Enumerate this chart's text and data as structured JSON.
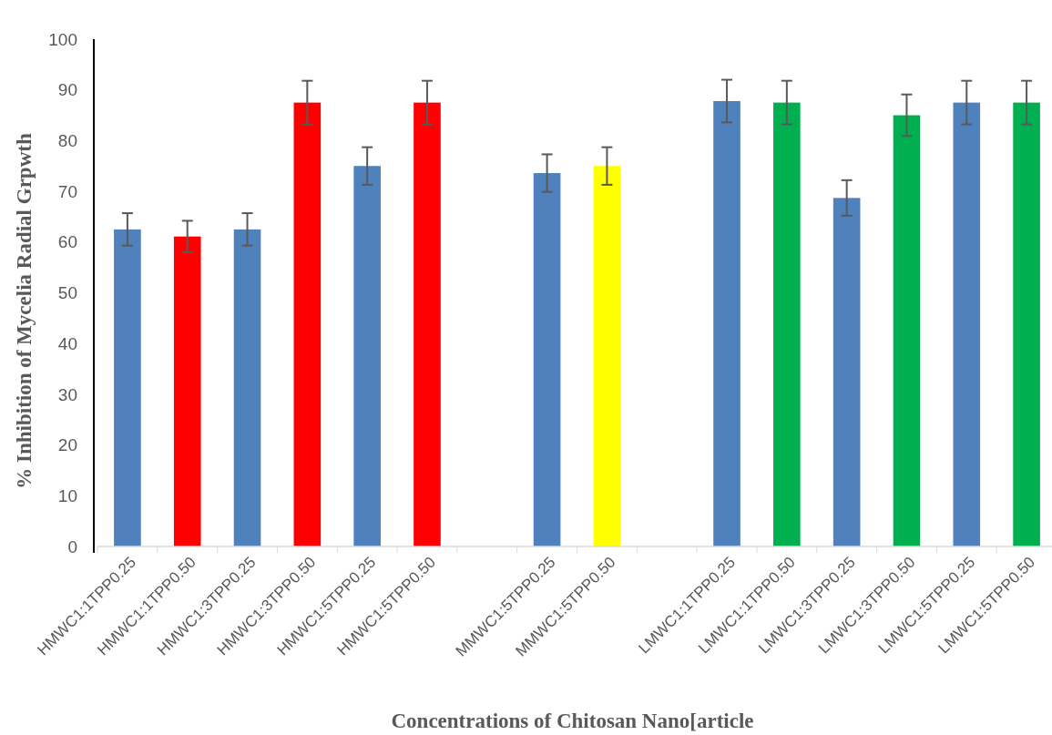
{
  "chart_data": {
    "type": "bar",
    "xlabel": "Concentrations of Chitosan Nano[article",
    "ylabel": "% Inhibition of Mycelia Radial Grpwth",
    "categories": [
      "HMWC1:1TPP0.25",
      "HMWC1:1TPP0.50",
      "HMWC1:3TPP0.25",
      "HMWC1:3TPP0.50",
      "HMWC1:5TPP0.25",
      "HMWC1:5TPP0.50",
      null,
      "MMWC1:5TPP0.25",
      "MMWC1:5TPP0.50",
      null,
      "LMWC1:1TPP0.25",
      "LMWC1:1TPP0.50",
      "LMWC1:3TPP0.25",
      "LMWC1:3TPP0.50",
      "LMWC1:5TPP0.25",
      "LMWC1:5TPP0.50"
    ],
    "values": [
      62.5,
      61.1,
      62.5,
      87.5,
      75,
      87.5,
      null,
      73.6,
      75,
      null,
      87.8,
      87.5,
      68.7,
      85,
      87.5,
      87.5
    ],
    "errors": [
      3.2,
      3.1,
      3.2,
      4.3,
      3.7,
      4.3,
      null,
      3.7,
      3.7,
      null,
      4.2,
      4.3,
      3.5,
      4.1,
      4.3,
      4.3
    ],
    "colors": [
      "#4f81bd",
      "#ff0000",
      "#4f81bd",
      "#ff0000",
      "#4f81bd",
      "#ff0000",
      null,
      "#4f81bd",
      "#ffff00",
      null,
      "#4f81bd",
      "#00b050",
      "#4f81bd",
      "#00b050",
      "#4f81bd",
      "#00b050"
    ],
    "ylim": [
      0,
      100
    ],
    "yticks": [
      0,
      10,
      20,
      30,
      40,
      50,
      60,
      70,
      80,
      90,
      100
    ]
  }
}
